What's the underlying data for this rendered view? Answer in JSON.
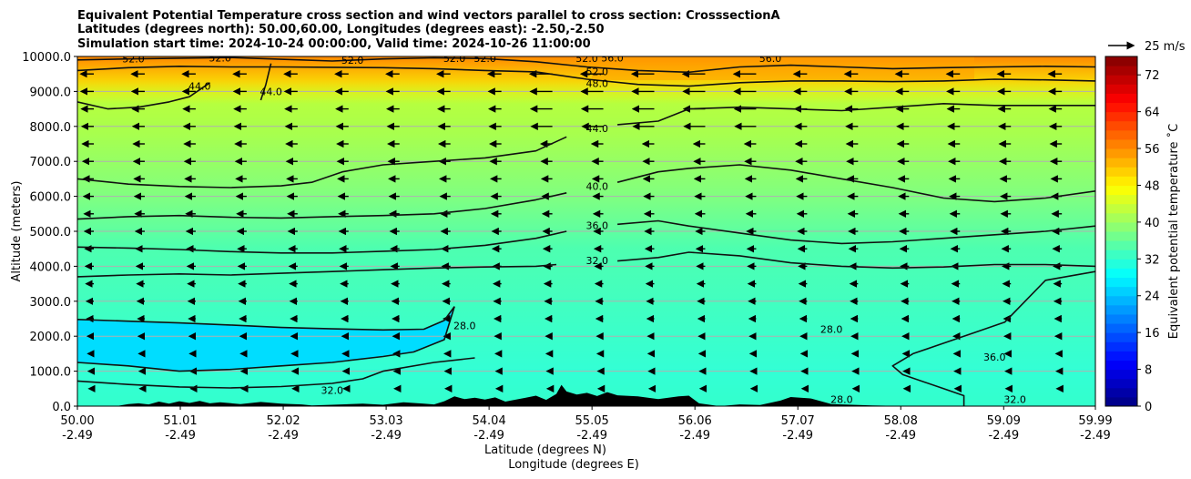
{
  "chart_data": {
    "type": "cross-section-contour",
    "title": [
      "Equivalent Potential Temperature cross section and wind vectors parallel to cross section: CrosssectionA",
      "Latitudes (degrees north): 50.00,60.00, Longitudes (degrees east): -2.50,-2.50",
      "Simulation start time: 2024-10-24 00:00:00, Valid time: 2024-10-26 11:00:00"
    ],
    "xlabel_lat": "Latitude (degrees N)",
    "xlabel_lon": "Longitude (degrees E)",
    "ylabel": "Altitude (meters)",
    "xlim": [
      50.0,
      59.99
    ],
    "ylim": [
      0,
      10000
    ],
    "x_ticks": [
      {
        "lat": "50.00",
        "lon": "-2.49"
      },
      {
        "lat": "51.01",
        "lon": "-2.49"
      },
      {
        "lat": "52.02",
        "lon": "-2.49"
      },
      {
        "lat": "53.03",
        "lon": "-2.49"
      },
      {
        "lat": "54.04",
        "lon": "-2.49"
      },
      {
        "lat": "55.05",
        "lon": "-2.49"
      },
      {
        "lat": "56.06",
        "lon": "-2.49"
      },
      {
        "lat": "57.07",
        "lon": "-2.49"
      },
      {
        "lat": "58.08",
        "lon": "-2.49"
      },
      {
        "lat": "59.09",
        "lon": "-2.49"
      },
      {
        "lat": "59.99",
        "lon": "-2.49"
      }
    ],
    "y_ticks": [
      "0.0",
      "1000.0",
      "2000.0",
      "3000.0",
      "4000.0",
      "5000.0",
      "6000.0",
      "7000.0",
      "8000.0",
      "9000.0",
      "10000.0"
    ],
    "colorbar": {
      "label": "Equivalent potential temperature ˚C",
      "min": 0,
      "max": 76,
      "step": 2,
      "ticks": [
        "0",
        "8",
        "16",
        "24",
        "32",
        "40",
        "48",
        "56",
        "64",
        "72"
      ]
    },
    "wind_key_label": "25 m/s",
    "contour_labels": [
      {
        "text": "52.0",
        "x": 50.55,
        "y": 9940
      },
      {
        "text": "52.0",
        "x": 51.4,
        "y": 9960
      },
      {
        "text": "52.0",
        "x": 52.7,
        "y": 9900
      },
      {
        "text": "52.0",
        "x": 53.7,
        "y": 9950
      },
      {
        "text": "52.0",
        "x": 54.0,
        "y": 9950
      },
      {
        "text": "52.0",
        "x": 55.0,
        "y": 9950
      },
      {
        "text": "56.0",
        "x": 55.25,
        "y": 9960
      },
      {
        "text": "56.0",
        "x": 56.8,
        "y": 9950
      },
      {
        "text": "52.0",
        "x": 55.1,
        "y": 9570
      },
      {
        "text": "48.0",
        "x": 55.1,
        "y": 9230
      },
      {
        "text": "44.0",
        "x": 51.2,
        "y": 9150
      },
      {
        "text": "44.0",
        "x": 51.9,
        "y": 9000
      },
      {
        "text": "44.0",
        "x": 55.1,
        "y": 7940
      },
      {
        "text": "40.0",
        "x": 55.1,
        "y": 6290
      },
      {
        "text": "36.0",
        "x": 55.1,
        "y": 5170
      },
      {
        "text": "32.0",
        "x": 55.1,
        "y": 4170
      },
      {
        "text": "32.0",
        "x": 52.5,
        "y": 460
      },
      {
        "text": "28.0",
        "x": 53.8,
        "y": 2300
      },
      {
        "text": "28.0",
        "x": 57.4,
        "y": 2200
      },
      {
        "text": "28.0",
        "x": 57.5,
        "y": 200
      },
      {
        "text": "36.0",
        "x": 59.0,
        "y": 1400
      },
      {
        "text": "32.0",
        "x": 59.2,
        "y": 200
      }
    ],
    "contours": [
      {
        "level": 28,
        "x": [
          50.0,
          50.5,
          51.0,
          51.5,
          52.0,
          52.5,
          53.0,
          53.4,
          53.6,
          53.7
        ],
        "y": [
          2480,
          2430,
          2380,
          2320,
          2250,
          2210,
          2180,
          2200,
          2450,
          2850
        ]
      },
      {
        "level": 28,
        "x": [
          53.7,
          53.6,
          53.3,
          53.0,
          52.5,
          52.0,
          51.5,
          51.0,
          50.5,
          50.0
        ],
        "y": [
          2850,
          1900,
          1550,
          1420,
          1250,
          1150,
          1050,
          1000,
          1150,
          1250
        ]
      },
      {
        "level": 32,
        "x": [
          50.0,
          50.5,
          51.0,
          51.5,
          52.0,
          52.5,
          52.8,
          53.0,
          53.5,
          53.9
        ],
        "y": [
          720,
          620,
          550,
          520,
          560,
          650,
          780,
          1000,
          1250,
          1380
        ]
      },
      {
        "level": 32,
        "x": [
          50.0,
          50.5,
          51.0,
          51.5,
          52.0,
          52.5,
          53.0,
          53.5,
          54.0,
          54.5,
          54.7
        ],
        "y": [
          3700,
          3750,
          3780,
          3750,
          3800,
          3850,
          3900,
          3950,
          3980,
          4000,
          4050
        ]
      },
      {
        "level": 32,
        "x": [
          55.3,
          55.7,
          56.0,
          56.5,
          57.0,
          57.5,
          58.0,
          58.5,
          59.0,
          59.5,
          59.99
        ],
        "y": [
          4150,
          4250,
          4400,
          4300,
          4100,
          4000,
          3950,
          3980,
          4050,
          4050,
          4000
        ]
      },
      {
        "level": 36,
        "x": [
          50.0,
          50.5,
          51.0,
          51.5,
          52.0,
          52.5,
          53.0,
          53.5,
          54.0,
          54.5,
          54.8
        ],
        "y": [
          4550,
          4520,
          4480,
          4420,
          4380,
          4380,
          4430,
          4480,
          4600,
          4800,
          5000
        ]
      },
      {
        "level": 36,
        "x": [
          55.3,
          55.7,
          56.0,
          56.5,
          57.0,
          57.5,
          58.0,
          58.5,
          59.0,
          59.5,
          59.99
        ],
        "y": [
          5200,
          5300,
          5150,
          4950,
          4750,
          4650,
          4700,
          4800,
          4900,
          5000,
          5150
        ]
      },
      {
        "level": 36,
        "x": [
          59.99,
          59.5,
          59.3,
          59.1,
          58.8,
          58.5,
          58.2,
          58.0,
          58.1,
          58.5,
          58.7,
          58.7
        ],
        "y": [
          3850,
          3600,
          3000,
          2400,
          2100,
          1800,
          1500,
          1150,
          900,
          500,
          300,
          0
        ]
      },
      {
        "level": 40,
        "x": [
          50.0,
          50.5,
          51.0,
          51.5,
          52.0,
          52.5,
          53.0,
          53.5,
          54.0,
          54.5,
          54.8
        ],
        "y": [
          5350,
          5420,
          5450,
          5400,
          5380,
          5420,
          5450,
          5500,
          5650,
          5900,
          6100
        ]
      },
      {
        "level": 40,
        "x": [
          55.3,
          55.7,
          56.0,
          56.5,
          57.0,
          57.5,
          58.0,
          58.5,
          59.0,
          59.5,
          59.99
        ],
        "y": [
          6400,
          6700,
          6800,
          6900,
          6750,
          6500,
          6250,
          5950,
          5850,
          5950,
          6150
        ]
      },
      {
        "level": 44,
        "x": [
          50.0,
          50.3,
          50.6,
          50.9,
          51.1,
          51.3
        ],
        "y": [
          8700,
          8500,
          8550,
          8700,
          8850,
          9250
        ]
      },
      {
        "level": 44,
        "x": [
          51.8,
          51.85,
          51.9
        ],
        "y": [
          8750,
          9200,
          9800
        ]
      },
      {
        "level": 44,
        "x": [
          50.0,
          50.5,
          51.0,
          51.5,
          52.0,
          52.3,
          52.6,
          53.0,
          53.5,
          54.0,
          54.5,
          54.8
        ],
        "y": [
          6500,
          6350,
          6280,
          6250,
          6300,
          6400,
          6700,
          6900,
          7000,
          7100,
          7300,
          7700
        ]
      },
      {
        "level": 44,
        "x": [
          55.3,
          55.7,
          56.0,
          56.5,
          57.0,
          57.5,
          58.0,
          58.5,
          59.0,
          59.5,
          59.99
        ],
        "y": [
          8050,
          8150,
          8500,
          8550,
          8500,
          8450,
          8550,
          8650,
          8600,
          8600,
          8600
        ]
      },
      {
        "level": 48,
        "x": [
          50.0,
          50.5,
          51.0,
          51.5,
          52.0,
          52.5,
          53.0,
          53.5,
          54.0,
          54.5,
          55.0,
          55.5,
          56.0,
          56.5,
          57.0,
          57.5,
          58.0,
          58.5,
          59.0,
          59.5,
          59.99
        ],
        "y": [
          9600,
          9680,
          9720,
          9700,
          9700,
          9690,
          9680,
          9650,
          9600,
          9560,
          9350,
          9200,
          9150,
          9250,
          9300,
          9300,
          9280,
          9300,
          9350,
          9330,
          9300
        ]
      },
      {
        "level": 52,
        "x": [
          50.0,
          50.5,
          51.0,
          51.5,
          52.0,
          52.5,
          53.0,
          53.5,
          54.0,
          54.5,
          55.0,
          55.5,
          56.0,
          56.5,
          57.0,
          57.5,
          58.0,
          58.5,
          59.0,
          59.5,
          59.99
        ],
        "y": [
          9900,
          9930,
          9950,
          9970,
          9920,
          9870,
          9930,
          9960,
          9940,
          9850,
          9700,
          9600,
          9550,
          9700,
          9750,
          9700,
          9650,
          9680,
          9700,
          9720,
          9700
        ]
      }
    ],
    "fill_bands": [
      {
        "level": 28,
        "x": [
          50.0,
          50.5,
          51.0,
          51.5,
          52.0,
          52.5,
          53.0,
          53.4,
          53.6,
          53.7,
          53.6,
          53.3,
          53.0,
          52.5,
          52.0,
          51.5,
          51.0,
          50.5,
          50.0
        ],
        "y": [
          2480,
          2430,
          2380,
          2320,
          2250,
          2210,
          2180,
          2200,
          2450,
          2850,
          1900,
          1550,
          1420,
          1250,
          1150,
          1050,
          1000,
          1150,
          1250
        ]
      }
    ],
    "terrain": {
      "x": [
        50.0,
        50.4,
        50.5,
        50.6,
        50.7,
        50.8,
        50.9,
        51.0,
        51.1,
        51.2,
        51.3,
        51.4,
        51.6,
        51.8,
        52.0,
        52.2,
        52.3,
        52.5,
        52.8,
        53.0,
        53.2,
        53.4,
        53.5,
        53.6,
        53.7,
        53.8,
        53.9,
        54.0,
        54.1,
        54.2,
        54.4,
        54.5,
        54.6,
        54.7,
        54.75,
        54.8,
        54.9,
        55.0,
        55.1,
        55.2,
        55.3,
        55.5,
        55.7,
        55.9,
        56.0,
        56.1,
        56.3,
        56.5,
        56.7,
        56.9,
        57.0,
        57.2,
        57.4,
        57.6,
        57.8,
        58.0,
        58.3,
        58.6,
        59.0,
        59.5,
        59.99
      ],
      "y": [
        0,
        10,
        60,
        80,
        50,
        130,
        70,
        140,
        90,
        150,
        80,
        110,
        60,
        120,
        70,
        50,
        20,
        40,
        70,
        40,
        110,
        70,
        50,
        140,
        280,
        200,
        240,
        190,
        250,
        130,
        240,
        300,
        180,
        350,
        610,
        420,
        330,
        380,
        290,
        400,
        310,
        280,
        200,
        280,
        300,
        80,
        0,
        50,
        30,
        160,
        260,
        220,
        60,
        40,
        20,
        10,
        0,
        0,
        0,
        0,
        0
      ]
    },
    "wind": {
      "x": [
        50.0,
        50.5,
        51.0,
        51.5,
        52.0,
        52.5,
        53.0,
        53.5,
        54.0,
        54.5,
        55.0,
        55.5,
        56.0,
        56.5,
        57.0,
        57.5,
        58.0,
        58.5,
        59.0,
        59.5
      ],
      "y": [
        500,
        1000,
        1500,
        2000,
        2500,
        3000,
        3500,
        4000,
        4500,
        5000,
        5500,
        6000,
        6500,
        7000,
        7500,
        8000,
        8500,
        9000,
        9500
      ]
    }
  }
}
